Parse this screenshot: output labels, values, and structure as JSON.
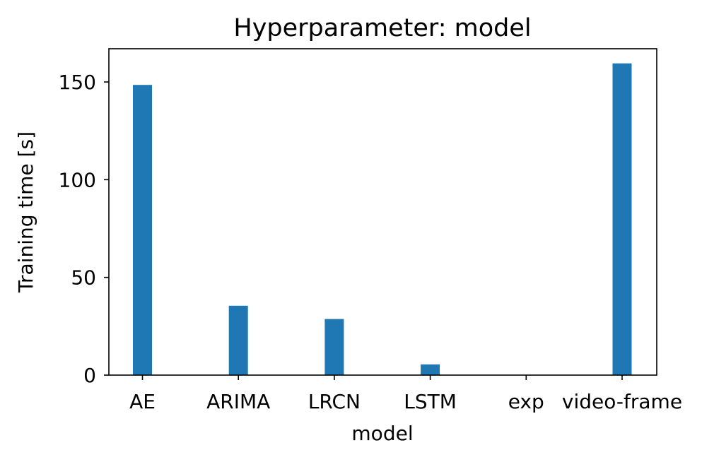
{
  "chart_data": {
    "type": "bar",
    "title": "Hyperparameter: model",
    "xlabel": "model",
    "ylabel": "Training time [s]",
    "categories": [
      "AE",
      "ARIMA",
      "LRCN",
      "LSTM",
      "exp",
      "video-frame"
    ],
    "values": [
      148.5,
      35.5,
      28.7,
      5.5,
      0,
      159.5
    ],
    "ylim": [
      0,
      167
    ],
    "yticks": [
      0,
      50,
      100,
      150
    ],
    "bar_color": "#1f77b4",
    "grid": false,
    "legend": "none"
  }
}
